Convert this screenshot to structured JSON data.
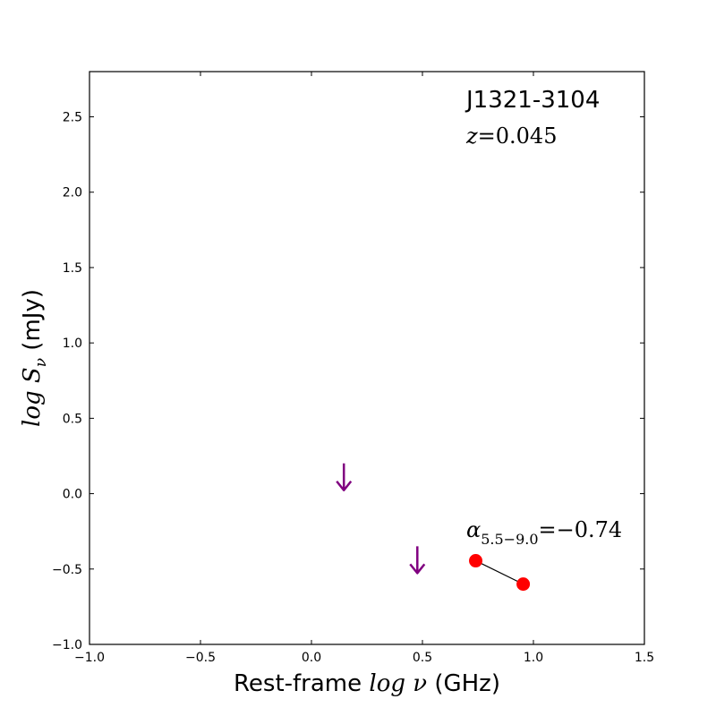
{
  "chart_data": {
    "type": "scatter",
    "title": "",
    "xlabel_prefix": "Rest-frame ",
    "xlabel_math": "log ν",
    "xlabel_suffix": " (GHz)",
    "ylabel_math": "log S",
    "ylabel_sub": "ν",
    "ylabel_suffix": " (mJy)",
    "xlim": [
      -1.0,
      1.5
    ],
    "ylim": [
      -1.0,
      2.8
    ],
    "xticks": [
      -1.0,
      -0.5,
      0.0,
      0.5,
      1.0,
      1.5
    ],
    "xtick_labels": [
      "−1.0",
      "−0.5",
      "0.0",
      "0.5",
      "1.0",
      "1.5"
    ],
    "yticks": [
      -1.0,
      -0.5,
      0.0,
      0.5,
      1.0,
      1.5,
      2.0,
      2.5
    ],
    "ytick_labels": [
      "−1.0",
      "−0.5",
      "0.0",
      "0.5",
      "1.0",
      "1.5",
      "2.0",
      "2.5"
    ],
    "grid": false,
    "series": [
      {
        "kind": "detection",
        "color": "#ff0000",
        "x": [
          0.74,
          0.954
        ],
        "y": [
          -0.445,
          -0.6
        ]
      },
      {
        "kind": "upper-limit",
        "color": "#800080",
        "x": [
          0.146,
          0.477
        ],
        "y": [
          0.1,
          -0.45
        ]
      }
    ],
    "fit_line": {
      "x": [
        0.74,
        0.954
      ],
      "y": [
        -0.445,
        -0.6
      ],
      "color": "#000000"
    },
    "annotations": {
      "source_name": "J1321-3104",
      "redshift_symbol": "z",
      "redshift_value": "=0.045",
      "alpha_symbol": "α",
      "alpha_sub": "5.5−9.0",
      "alpha_value": "=−0.74"
    }
  }
}
